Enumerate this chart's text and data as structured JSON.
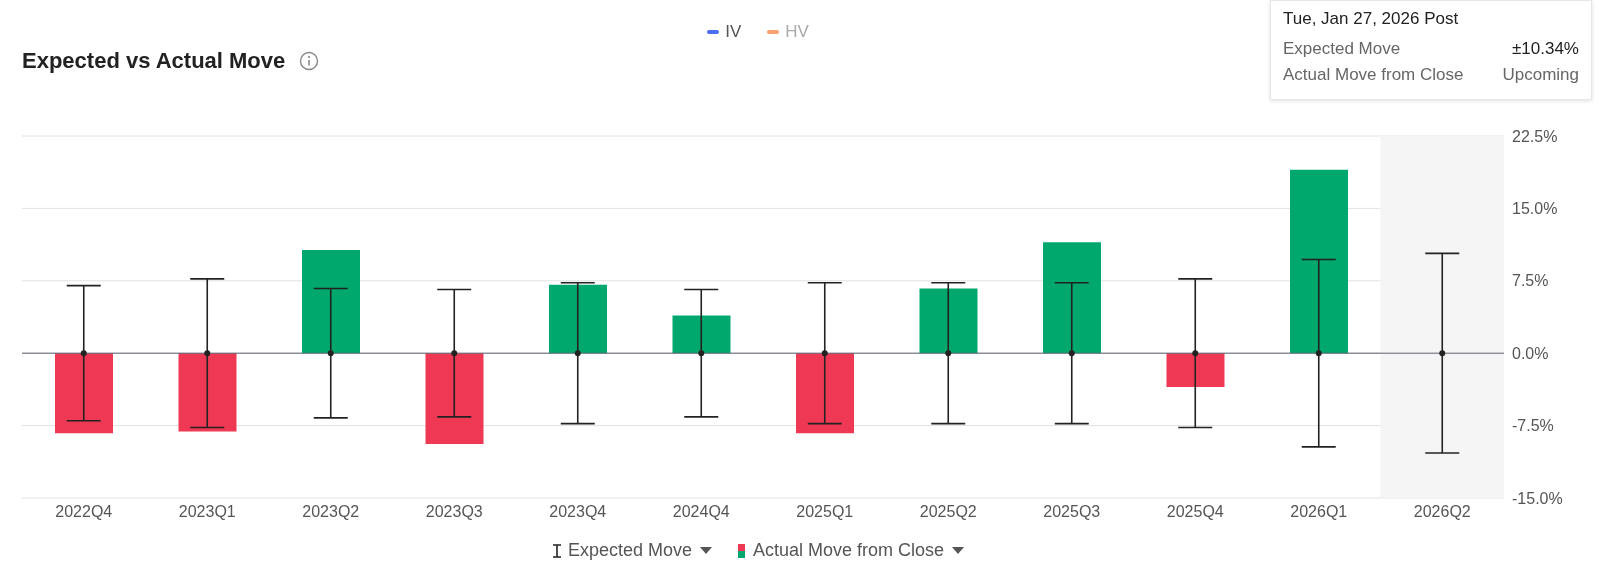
{
  "chart_data": {
    "type": "bar",
    "title": "Expected vs Actual Move",
    "categories": [
      "2022Q4",
      "2023Q1",
      "2023Q2",
      "2023Q3",
      "2023Q4",
      "2024Q4",
      "2025Q1",
      "2025Q2",
      "2025Q3",
      "2025Q4",
      "2026Q1",
      "2026Q2"
    ],
    "series": [
      {
        "name": "Expected Move",
        "type": "scatter",
        "marker": "circle",
        "color": "#222222",
        "values": [
          0,
          0,
          0,
          0,
          0,
          0,
          0,
          0,
          0,
          0,
          0,
          0
        ],
        "errors": [
          7.0,
          7.7,
          6.7,
          6.6,
          7.3,
          6.6,
          7.3,
          7.3,
          7.3,
          7.7,
          9.7,
          10.34
        ]
      },
      {
        "name": "Actual Move from Close",
        "color": "#00a86e",
        "values": [
          -8.3,
          -8.1,
          10.7,
          -9.4,
          7.1,
          3.9,
          -8.3,
          6.7,
          11.5,
          -3.5,
          19.0,
          null
        ],
        "colors": [
          "#ef3954",
          "#ef3954",
          "#00a86e",
          "#ef3954",
          "#00a86e",
          "#00a86e",
          "#ef3954",
          "#00a86e",
          "#00a86e",
          "#ef3954",
          "#00a86e",
          "#00a86e"
        ]
      }
    ],
    "ylim": [
      -15,
      22.5
    ],
    "yticks": [
      {
        "value": -15,
        "label": "-15.0%"
      },
      {
        "value": -7.5,
        "label": "-7.5%"
      },
      {
        "value": 0,
        "label": "0.0%"
      },
      {
        "value": 7.5,
        "label": "7.5%"
      },
      {
        "value": 15,
        "label": "15.0%"
      },
      {
        "value": 22.5,
        "label": "22.5%"
      }
    ],
    "grid": "y",
    "legend": "bottom",
    "ref_lines": [
      {
        "axis": "y",
        "value": 0,
        "color": "#5c6370"
      }
    ],
    "bands": [
      {
        "axis": "x",
        "from": "2026Q2",
        "to": "2026Q2",
        "color": "#f5f5f5"
      }
    ],
    "annotations": [
      "IV",
      "HV",
      "Tue, Jan 27, 2026 Post",
      "Expected Move",
      "±10.34%",
      "Actual Move from Close",
      "Upcoming"
    ]
  }
}
